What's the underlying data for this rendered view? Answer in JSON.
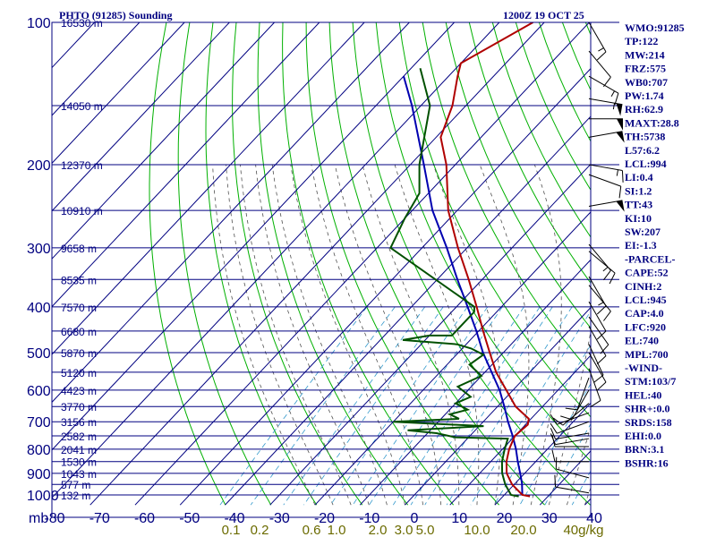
{
  "header": {
    "left_title": "PHTO (91285) Sounding",
    "right_title": "1200Z 19 OCT 25"
  },
  "indices": [
    "WMO:91285",
    "TP:122",
    "MW:214",
    "FRZ:575",
    "WB0:707",
    "PW:1.74",
    "RH:62.9",
    "MAXT:28.8",
    "TH:5738",
    "L57:6.2",
    "LCL:994",
    "LI:0.4",
    "SI:1.2",
    "TT:43",
    "KI:10",
    "SW:207",
    "EI:-1.3",
    "-PARCEL-",
    "CAPE:52",
    "CINH:2",
    "LCL:945",
    "CAP:4.0",
    "LFC:920",
    "EL:740",
    "MPL:700",
    "-WIND-",
    "STM:103/7",
    "HEL:40",
    "SHR+:0.0",
    "SRDS:158",
    "EHI:0.0",
    "BRN:3.1",
    "BSHR:16"
  ],
  "colors": {
    "frame": "#000080",
    "isotherm": "#000080",
    "dry_adiabat": "#00b000",
    "moist_adiabat": "#505050",
    "mixing_ratio": "#3399cc",
    "temperature": "#b00000",
    "dewpoint": "#005000",
    "parcel": "#0000b0",
    "wind_scale": "#6b6b00"
  },
  "chart_data": {
    "type": "skew-t",
    "pressure_axis_label": "mb",
    "pressure_levels": [
      100,
      200,
      300,
      400,
      500,
      600,
      700,
      800,
      900,
      1000
    ],
    "pressure_range": [
      100,
      1050
    ],
    "temperature_ticks": [
      -80,
      -70,
      -60,
      -50,
      -40,
      -30,
      -20,
      -10,
      0,
      10,
      20,
      30,
      40
    ],
    "mixing_ratio_labels": [
      "0.1",
      "0.2",
      "0.6",
      "1.0",
      "2.0",
      "3.0",
      "5.0",
      "10.0",
      "20.0",
      "40g/kg"
    ],
    "height_labels": [
      {
        "p": 100,
        "label": "16530 m"
      },
      {
        "p": 150,
        "label": "14050 m"
      },
      {
        "p": 200,
        "label": "12370 m"
      },
      {
        "p": 250,
        "label": "10910 m"
      },
      {
        "p": 300,
        "label": "9658 m"
      },
      {
        "p": 350,
        "label": "8535 m"
      },
      {
        "p": 400,
        "label": "7570 m"
      },
      {
        "p": 450,
        "label": "6680 m"
      },
      {
        "p": 500,
        "label": "5870 m"
      },
      {
        "p": 550,
        "label": "5120 m"
      },
      {
        "p": 600,
        "label": "4423 m"
      },
      {
        "p": 650,
        "label": "3770 m"
      },
      {
        "p": 700,
        "label": "3156 m"
      },
      {
        "p": 750,
        "label": "2582 m"
      },
      {
        "p": 800,
        "label": "2041 m"
      },
      {
        "p": 850,
        "label": "1530 m"
      },
      {
        "p": 900,
        "label": "1043 m"
      },
      {
        "p": 950,
        "label": "577 m"
      },
      {
        "p": 1000,
        "label": "132 m"
      }
    ],
    "temperature_profile": [
      {
        "p": 1007,
        "t": 26.0
      },
      {
        "p": 1000,
        "t": 24.0
      },
      {
        "p": 950,
        "t": 19.5
      },
      {
        "p": 900,
        "t": 16.0
      },
      {
        "p": 850,
        "t": 13.5
      },
      {
        "p": 800,
        "t": 11.5
      },
      {
        "p": 750,
        "t": 10.0
      },
      {
        "p": 710,
        "t": 10.5
      },
      {
        "p": 690,
        "t": 9.5
      },
      {
        "p": 650,
        "t": 4.0
      },
      {
        "p": 600,
        "t": -1.5
      },
      {
        "p": 550,
        "t": -7.5
      },
      {
        "p": 500,
        "t": -13.0
      },
      {
        "p": 450,
        "t": -19.0
      },
      {
        "p": 400,
        "t": -25.5
      },
      {
        "p": 350,
        "t": -33.0
      },
      {
        "p": 300,
        "t": -42.0
      },
      {
        "p": 250,
        "t": -52.0
      },
      {
        "p": 200,
        "t": -62.0
      },
      {
        "p": 175,
        "t": -69.0
      },
      {
        "p": 150,
        "t": -73.0
      },
      {
        "p": 130,
        "t": -78.0
      },
      {
        "p": 122,
        "t": -80.0
      },
      {
        "p": 100,
        "t": -72.5
      }
    ],
    "dewpoint_profile": [
      {
        "p": 1007,
        "td": 23.5
      },
      {
        "p": 1000,
        "td": 21.5
      },
      {
        "p": 950,
        "td": 18.0
      },
      {
        "p": 900,
        "td": 15.0
      },
      {
        "p": 850,
        "td": 12.5
      },
      {
        "p": 800,
        "td": 10.5
      },
      {
        "p": 760,
        "td": 9.0
      },
      {
        "p": 755,
        "td": -3.0
      },
      {
        "p": 740,
        "td": -8.0
      },
      {
        "p": 730,
        "td": -15.0
      },
      {
        "p": 715,
        "td": 1.0
      },
      {
        "p": 700,
        "td": -20.0
      },
      {
        "p": 690,
        "td": -6.0
      },
      {
        "p": 675,
        "td": -9.0
      },
      {
        "p": 660,
        "td": -6.0
      },
      {
        "p": 640,
        "td": -10.0
      },
      {
        "p": 620,
        "td": -8.0
      },
      {
        "p": 590,
        "td": -13.0
      },
      {
        "p": 560,
        "td": -10.0
      },
      {
        "p": 530,
        "td": -15.0
      },
      {
        "p": 505,
        "td": -14.0
      },
      {
        "p": 490,
        "td": -18.0
      },
      {
        "p": 480,
        "td": -22.0
      },
      {
        "p": 470,
        "td": -35.0
      },
      {
        "p": 460,
        "td": -30.0
      },
      {
        "p": 460,
        "td": -25.0
      },
      {
        "p": 410,
        "td": -25.0
      },
      {
        "p": 400,
        "td": -26.0
      },
      {
        "p": 300,
        "td": -57.0
      },
      {
        "p": 260,
        "td": -60.0
      },
      {
        "p": 230,
        "td": -62.0
      },
      {
        "p": 200,
        "td": -68.0
      },
      {
        "p": 150,
        "td": -78.0
      },
      {
        "p": 125,
        "td": -88.0
      }
    ],
    "parcel_profile": [
      {
        "p": 1000,
        "t": 24.0
      },
      {
        "p": 945,
        "t": 21.5
      },
      {
        "p": 900,
        "t": 19.0
      },
      {
        "p": 850,
        "t": 16.0
      },
      {
        "p": 800,
        "t": 13.0
      },
      {
        "p": 750,
        "t": 9.5
      },
      {
        "p": 700,
        "t": 5.5
      },
      {
        "p": 650,
        "t": 1.5
      },
      {
        "p": 600,
        "t": -3.0
      },
      {
        "p": 550,
        "t": -8.5
      },
      {
        "p": 500,
        "t": -14.5
      },
      {
        "p": 450,
        "t": -20.5
      },
      {
        "p": 400,
        "t": -27.5
      },
      {
        "p": 350,
        "t": -35.5
      },
      {
        "p": 300,
        "t": -44.5
      },
      {
        "p": 250,
        "t": -55.5
      },
      {
        "p": 200,
        "t": -67.0
      },
      {
        "p": 150,
        "t": -82.0
      },
      {
        "p": 130,
        "t": -90.0
      }
    ],
    "wind_barbs": [
      {
        "p": 100,
        "dir": 150,
        "spd": 15
      },
      {
        "p": 115,
        "dir": 140,
        "spd": 10
      },
      {
        "p": 130,
        "dir": 120,
        "spd": 15
      },
      {
        "p": 145,
        "dir": 100,
        "spd": 55
      },
      {
        "p": 160,
        "dir": 90,
        "spd": 50
      },
      {
        "p": 175,
        "dir": 80,
        "spd": 50
      },
      {
        "p": 200,
        "dir": 100,
        "spd": 15
      },
      {
        "p": 210,
        "dir": 110,
        "spd": 10
      },
      {
        "p": 245,
        "dir": 80,
        "spd": 50
      },
      {
        "p": 295,
        "dir": 140,
        "spd": 15
      },
      {
        "p": 305,
        "dir": 130,
        "spd": 10
      },
      {
        "p": 345,
        "dir": 150,
        "spd": 15
      },
      {
        "p": 360,
        "dir": 140,
        "spd": 10
      },
      {
        "p": 390,
        "dir": 150,
        "spd": 10
      },
      {
        "p": 420,
        "dir": 145,
        "spd": 10
      },
      {
        "p": 440,
        "dir": 150,
        "spd": 10
      },
      {
        "p": 480,
        "dir": 155,
        "spd": 10
      },
      {
        "p": 500,
        "dir": 150,
        "spd": 10
      },
      {
        "p": 540,
        "dir": 160,
        "spd": 10
      },
      {
        "p": 565,
        "dir": 200,
        "spd": 10
      },
      {
        "p": 600,
        "dir": 210,
        "spd": 10
      },
      {
        "p": 640,
        "dir": 230,
        "spd": 10
      },
      {
        "p": 670,
        "dir": 250,
        "spd": 10
      },
      {
        "p": 700,
        "dir": 250,
        "spd": 10
      },
      {
        "p": 740,
        "dir": 260,
        "spd": 10
      },
      {
        "p": 760,
        "dir": 260,
        "spd": 10
      },
      {
        "p": 790,
        "dir": 270,
        "spd": 10
      },
      {
        "p": 850,
        "dir": 270,
        "spd": 10
      },
      {
        "p": 920,
        "dir": 285,
        "spd": 10
      },
      {
        "p": 990,
        "dir": 280,
        "spd": 10
      }
    ]
  }
}
